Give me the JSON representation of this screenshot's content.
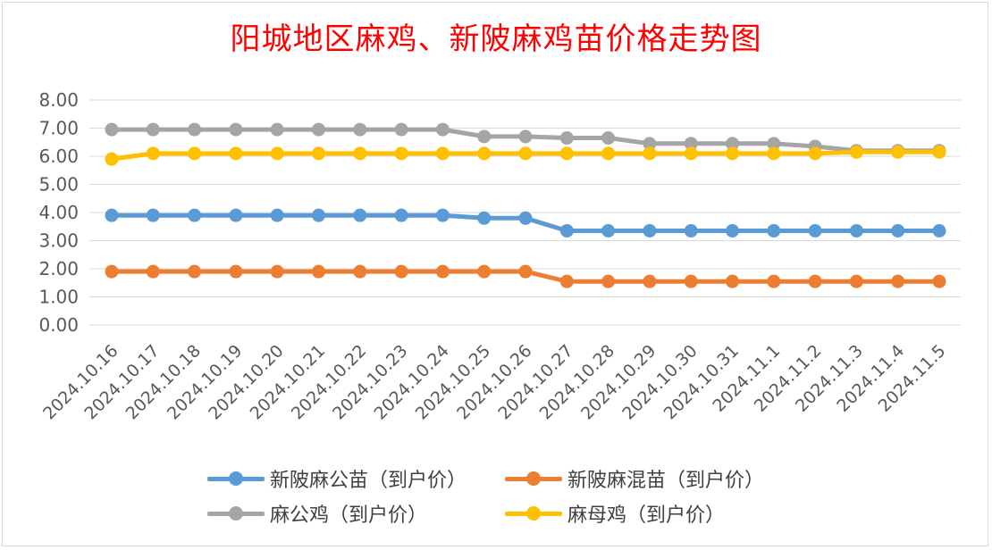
{
  "chart_data": {
    "type": "line",
    "title": "阳城地区麻鸡、新陂麻鸡苗价格走势图",
    "xlabel": "",
    "ylabel": "",
    "ylim": [
      0,
      8
    ],
    "ytick_step": 1,
    "ytick_labels": [
      "0.00",
      "1.00",
      "2.00",
      "3.00",
      "4.00",
      "5.00",
      "6.00",
      "7.00",
      "8.00"
    ],
    "grid": true,
    "legend_position": "bottom",
    "categories": [
      "2024.10.16",
      "2024.10.17",
      "2024.10.18",
      "2024.10.19",
      "2024.10.20",
      "2024.10.21",
      "2024.10.22",
      "2024.10.23",
      "2024.10.24",
      "2024.10.25",
      "2024.10.26",
      "2024.10.27",
      "2024.10.28",
      "2024.10.29",
      "2024.10.30",
      "2024.10.31",
      "2024.11.1",
      "2024.11.2",
      "2024.11.3",
      "2024.11.4",
      "2024.11.5"
    ],
    "series": [
      {
        "name": "新陂麻公苗（到户价）",
        "color": "#5b9bd5",
        "values": [
          3.9,
          3.9,
          3.9,
          3.9,
          3.9,
          3.9,
          3.9,
          3.9,
          3.9,
          3.8,
          3.8,
          3.35,
          3.35,
          3.35,
          3.35,
          3.35,
          3.35,
          3.35,
          3.35,
          3.35,
          3.35
        ]
      },
      {
        "name": "新陂麻混苗（到户价）",
        "color": "#ed7d31",
        "values": [
          1.9,
          1.9,
          1.9,
          1.9,
          1.9,
          1.9,
          1.9,
          1.9,
          1.9,
          1.9,
          1.9,
          1.55,
          1.55,
          1.55,
          1.55,
          1.55,
          1.55,
          1.55,
          1.55,
          1.55,
          1.55
        ]
      },
      {
        "name": "麻公鸡（到户价）",
        "color": "#a5a5a5",
        "values": [
          6.95,
          6.95,
          6.95,
          6.95,
          6.95,
          6.95,
          6.95,
          6.95,
          6.95,
          6.7,
          6.7,
          6.65,
          6.65,
          6.45,
          6.45,
          6.45,
          6.45,
          6.35,
          6.2,
          6.2,
          6.2
        ]
      },
      {
        "name": "麻母鸡（到户价）",
        "color": "#ffc000",
        "values": [
          5.9,
          6.1,
          6.1,
          6.1,
          6.1,
          6.1,
          6.1,
          6.1,
          6.1,
          6.1,
          6.1,
          6.1,
          6.1,
          6.1,
          6.1,
          6.1,
          6.1,
          6.1,
          6.15,
          6.15,
          6.15
        ]
      }
    ]
  }
}
